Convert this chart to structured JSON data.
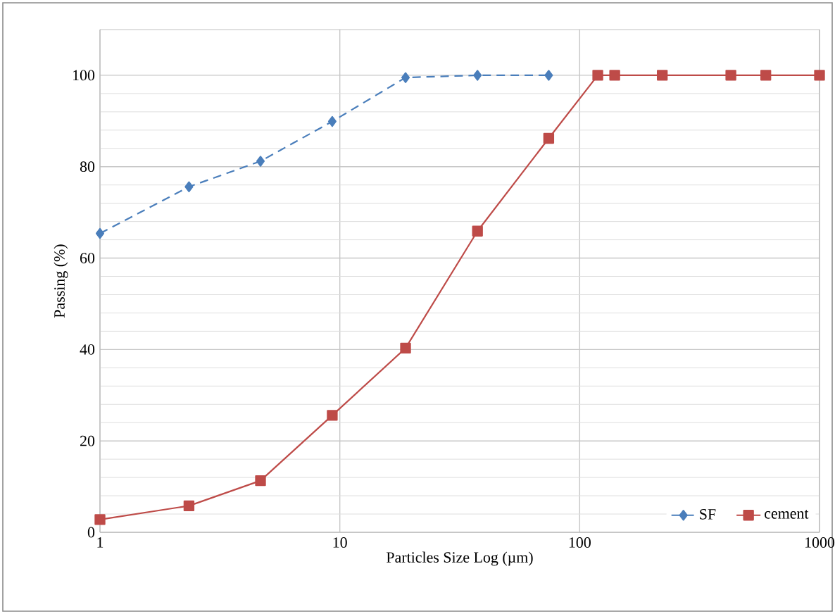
{
  "chart_data": {
    "type": "line",
    "xlabel": "Particles Size Log (µm)",
    "ylabel": "Passing (%)",
    "log": "x",
    "xlim": [
      1,
      1000
    ],
    "xticks": [
      1,
      10,
      100,
      1000
    ],
    "ylim": [
      0,
      110
    ],
    "yticks": [
      0,
      20,
      40,
      60,
      80,
      100
    ],
    "grid": true,
    "legend": "bottom right",
    "series": [
      {
        "name": "SF",
        "color": "#4a7ebb",
        "marker": "diamond",
        "line_style": "dashed",
        "x": [
          1,
          2.35,
          4.67,
          9.3,
          18.8,
          37.5,
          74.3
        ],
        "values": [
          65.4,
          75.6,
          81.2,
          89.9,
          99.5,
          100,
          100
        ]
      },
      {
        "name": "cement",
        "color": "#be4b48",
        "marker": "square",
        "line_style": "solid",
        "x": [
          1,
          2.35,
          4.67,
          9.3,
          18.8,
          37.5,
          74.3,
          119,
          140,
          221,
          427,
          597,
          1000
        ],
        "values": [
          2.8,
          5.8,
          11.3,
          25.6,
          40.3,
          65.9,
          86.2,
          100,
          100,
          100,
          100,
          100,
          100
        ]
      }
    ]
  }
}
